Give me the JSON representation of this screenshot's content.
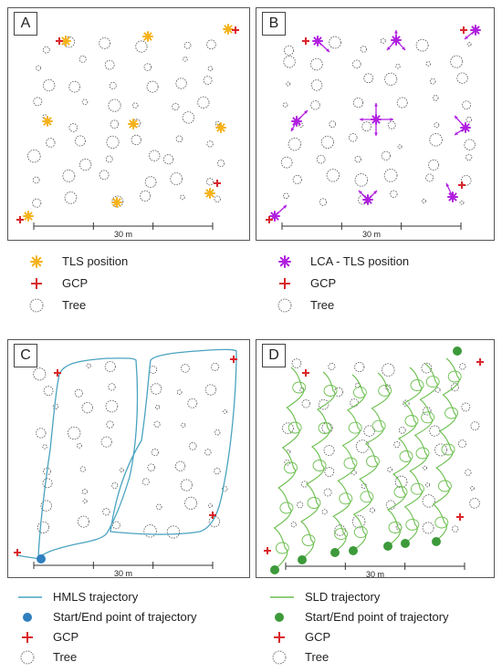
{
  "panels": [
    {
      "id": "A",
      "label": "A",
      "scale_label": "30 m"
    },
    {
      "id": "B",
      "label": "B",
      "scale_label": "30 m"
    },
    {
      "id": "C",
      "label": "C",
      "scale_label": "30 m"
    },
    {
      "id": "D",
      "label": "D",
      "scale_label": "30 m"
    }
  ],
  "legends": {
    "A": [
      {
        "symbol": "tls-star",
        "label": "TLS position"
      },
      {
        "symbol": "gcp-cross",
        "label": "GCP"
      },
      {
        "symbol": "tree-circle",
        "label": "Tree"
      }
    ],
    "B": [
      {
        "symbol": "lca-star",
        "label": "LCA - TLS position"
      },
      {
        "symbol": "gcp-cross",
        "label": "GCP"
      },
      {
        "symbol": "tree-circle",
        "label": "Tree"
      }
    ],
    "C": [
      {
        "symbol": "hmls-line",
        "label": "HMLS trajectory"
      },
      {
        "symbol": "blue-dot",
        "label": "Start/End point of trajectory"
      },
      {
        "symbol": "gcp-cross",
        "label": "GCP"
      },
      {
        "symbol": "tree-circle",
        "label": "Tree"
      }
    ],
    "D": [
      {
        "symbol": "sld-line",
        "label": "SLD trajectory"
      },
      {
        "symbol": "green-dot",
        "label": "Start/End point of trajectory"
      },
      {
        "symbol": "gcp-cross",
        "label": "GCP"
      },
      {
        "symbol": "tree-circle",
        "label": "Tree"
      }
    ]
  },
  "colors": {
    "tls": "#f5b21a",
    "lca": "#b01fe0",
    "gcp": "#d9252b",
    "hmls": "#4aa3c0",
    "hmls_dot": "#2f7fbf",
    "sld": "#6cbf4f",
    "sld_dot": "#3d9a3a",
    "tree": "#555555"
  }
}
